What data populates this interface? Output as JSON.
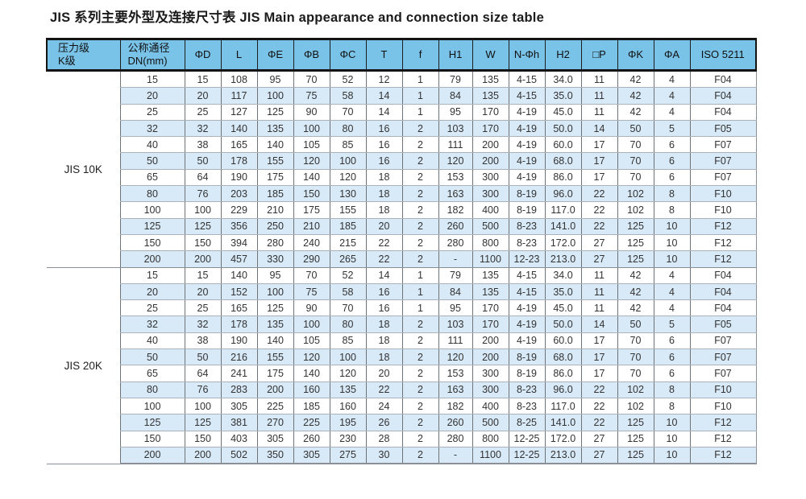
{
  "page_title": "JIS 系列主要外型及连接尺寸表  JIS Main appearance and connection size table",
  "colors": {
    "header_bg": "#7ac3e8",
    "stripe_bg": "#d8e9f7",
    "header_border": "#131313",
    "grid_line": "#aab1b8",
    "column_line": "#6e7378"
  },
  "table": {
    "columns": [
      {
        "key": "pressure",
        "label_lines": [
          "压力级",
          "K级"
        ]
      },
      {
        "key": "dn",
        "label_lines": [
          "公称通径",
          "DN(mm)"
        ]
      },
      {
        "key": "phi-d",
        "label_lines": [
          "ΦD"
        ]
      },
      {
        "key": "l",
        "label_lines": [
          "L"
        ]
      },
      {
        "key": "phi-e",
        "label_lines": [
          "ΦE"
        ]
      },
      {
        "key": "phi-b",
        "label_lines": [
          "ΦB"
        ]
      },
      {
        "key": "phi-c",
        "label_lines": [
          "ΦC"
        ]
      },
      {
        "key": "t",
        "label_lines": [
          "T"
        ]
      },
      {
        "key": "f",
        "label_lines": [
          "f"
        ]
      },
      {
        "key": "h1",
        "label_lines": [
          "H1"
        ]
      },
      {
        "key": "w",
        "label_lines": [
          "W"
        ]
      },
      {
        "key": "n-phi-h",
        "label_lines": [
          "N-Φh"
        ]
      },
      {
        "key": "h2",
        "label_lines": [
          "H2"
        ]
      },
      {
        "key": "square-p",
        "label_lines": [
          "□P"
        ]
      },
      {
        "key": "phi-k",
        "label_lines": [
          "ΦK"
        ]
      },
      {
        "key": "phi-a",
        "label_lines": [
          "ΦA"
        ]
      },
      {
        "key": "iso5211",
        "label_lines": [
          "ISO 5211"
        ]
      }
    ],
    "groups": [
      {
        "pressure_class": "JIS 10K",
        "rows": [
          [
            "15",
            "15",
            "108",
            "95",
            "70",
            "52",
            "12",
            "1",
            "79",
            "135",
            "4-15",
            "34.0",
            "11",
            "42",
            "4",
            "F04"
          ],
          [
            "20",
            "20",
            "117",
            "100",
            "75",
            "58",
            "14",
            "1",
            "84",
            "135",
            "4-15",
            "35.0",
            "11",
            "42",
            "4",
            "F04"
          ],
          [
            "25",
            "25",
            "127",
            "125",
            "90",
            "70",
            "14",
            "1",
            "95",
            "170",
            "4-19",
            "45.0",
            "11",
            "42",
            "4",
            "F04"
          ],
          [
            "32",
            "32",
            "140",
            "135",
            "100",
            "80",
            "16",
            "2",
            "103",
            "170",
            "4-19",
            "50.0",
            "14",
            "50",
            "5",
            "F05"
          ],
          [
            "40",
            "38",
            "165",
            "140",
            "105",
            "85",
            "16",
            "2",
            "111",
            "200",
            "4-19",
            "60.0",
            "17",
            "70",
            "6",
            "F07"
          ],
          [
            "50",
            "50",
            "178",
            "155",
            "120",
            "100",
            "16",
            "2",
            "120",
            "200",
            "4-19",
            "68.0",
            "17",
            "70",
            "6",
            "F07"
          ],
          [
            "65",
            "64",
            "190",
            "175",
            "140",
            "120",
            "18",
            "2",
            "153",
            "300",
            "4-19",
            "86.0",
            "17",
            "70",
            "6",
            "F07"
          ],
          [
            "80",
            "76",
            "203",
            "185",
            "150",
            "130",
            "18",
            "2",
            "163",
            "300",
            "8-19",
            "96.0",
            "22",
            "102",
            "8",
            "F10"
          ],
          [
            "100",
            "100",
            "229",
            "210",
            "175",
            "155",
            "18",
            "2",
            "182",
            "400",
            "8-19",
            "117.0",
            "22",
            "102",
            "8",
            "F10"
          ],
          [
            "125",
            "125",
            "356",
            "250",
            "210",
            "185",
            "20",
            "2",
            "260",
            "500",
            "8-23",
            "141.0",
            "22",
            "125",
            "10",
            "F12"
          ],
          [
            "150",
            "150",
            "394",
            "280",
            "240",
            "215",
            "22",
            "2",
            "280",
            "800",
            "8-23",
            "172.0",
            "27",
            "125",
            "10",
            "F12"
          ],
          [
            "200",
            "200",
            "457",
            "330",
            "290",
            "265",
            "22",
            "2",
            "-",
            "1100",
            "12-23",
            "213.0",
            "27",
            "125",
            "10",
            "F12"
          ]
        ]
      },
      {
        "pressure_class": "JIS 20K",
        "rows": [
          [
            "15",
            "15",
            "140",
            "95",
            "70",
            "52",
            "14",
            "1",
            "79",
            "135",
            "4-15",
            "34.0",
            "11",
            "42",
            "4",
            "F04"
          ],
          [
            "20",
            "20",
            "152",
            "100",
            "75",
            "58",
            "16",
            "1",
            "84",
            "135",
            "4-15",
            "35.0",
            "11",
            "42",
            "4",
            "F04"
          ],
          [
            "25",
            "25",
            "165",
            "125",
            "90",
            "70",
            "16",
            "1",
            "95",
            "170",
            "4-19",
            "45.0",
            "11",
            "42",
            "4",
            "F04"
          ],
          [
            "32",
            "32",
            "178",
            "135",
            "100",
            "80",
            "18",
            "2",
            "103",
            "170",
            "4-19",
            "50.0",
            "14",
            "50",
            "5",
            "F05"
          ],
          [
            "40",
            "38",
            "190",
            "140",
            "105",
            "85",
            "18",
            "2",
            "111",
            "200",
            "4-19",
            "60.0",
            "17",
            "70",
            "6",
            "F07"
          ],
          [
            "50",
            "50",
            "216",
            "155",
            "120",
            "100",
            "18",
            "2",
            "120",
            "200",
            "8-19",
            "68.0",
            "17",
            "70",
            "6",
            "F07"
          ],
          [
            "65",
            "64",
            "241",
            "175",
            "140",
            "120",
            "20",
            "2",
            "153",
            "300",
            "8-19",
            "86.0",
            "17",
            "70",
            "6",
            "F07"
          ],
          [
            "80",
            "76",
            "283",
            "200",
            "160",
            "135",
            "22",
            "2",
            "163",
            "300",
            "8-23",
            "96.0",
            "22",
            "102",
            "8",
            "F10"
          ],
          [
            "100",
            "100",
            "305",
            "225",
            "185",
            "160",
            "24",
            "2",
            "182",
            "400",
            "8-23",
            "117.0",
            "22",
            "102",
            "8",
            "F10"
          ],
          [
            "125",
            "125",
            "381",
            "270",
            "225",
            "195",
            "26",
            "2",
            "260",
            "500",
            "8-25",
            "141.0",
            "22",
            "125",
            "10",
            "F12"
          ],
          [
            "150",
            "150",
            "403",
            "305",
            "260",
            "230",
            "28",
            "2",
            "280",
            "800",
            "12-25",
            "172.0",
            "27",
            "125",
            "10",
            "F12"
          ],
          [
            "200",
            "200",
            "502",
            "350",
            "305",
            "275",
            "30",
            "2",
            "-",
            "1100",
            "12-25",
            "213.0",
            "27",
            "125",
            "10",
            "F12"
          ]
        ]
      }
    ]
  }
}
